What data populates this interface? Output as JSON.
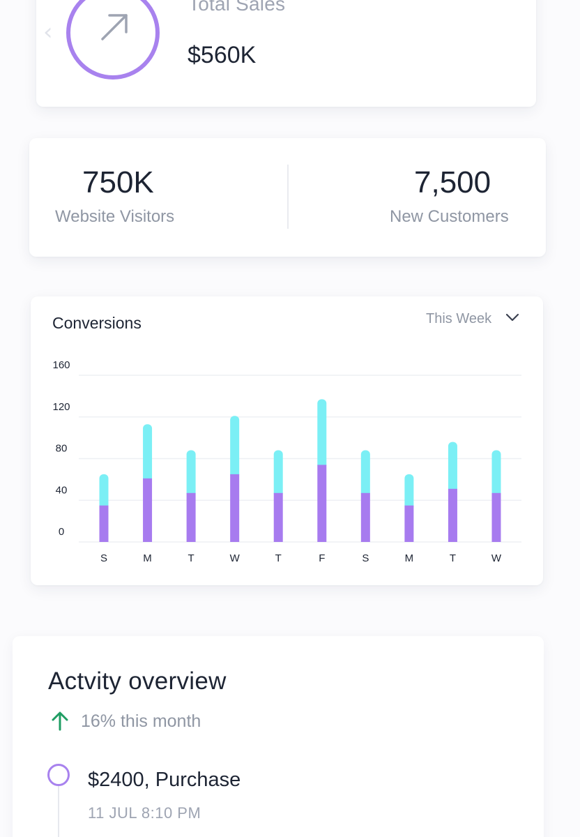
{
  "colors": {
    "accent_purple": "#a882ee",
    "bar_bottom": "#a77bef",
    "bar_top": "#7beff5",
    "trend_up": "#1f9d63",
    "text_muted": "#8f96a3"
  },
  "sales": {
    "label": "Total Sales",
    "value": "$560K",
    "icon": "arrow-up-right-icon",
    "nav_icon": "chevron-left-icon"
  },
  "stats": {
    "visitors": {
      "value": "750K",
      "label": "Website Visitors"
    },
    "customers": {
      "value": "7,500",
      "label": "New Customers"
    }
  },
  "conversions": {
    "title": "Conversions",
    "period": "This Week",
    "period_icon": "chevron-down-icon"
  },
  "chart_data": {
    "type": "bar",
    "stacked": true,
    "title": "Conversions",
    "categories": [
      "S",
      "M",
      "T",
      "W",
      "T",
      "F",
      "S",
      "M",
      "T",
      "W"
    ],
    "series": [
      {
        "values": [
          35,
          61,
          47,
          65,
          47,
          74,
          47,
          35,
          51,
          47
        ]
      },
      {
        "values": [
          30,
          52,
          41,
          56,
          41,
          63,
          41,
          30,
          45,
          41
        ]
      }
    ],
    "yticks": [
      "0",
      "40",
      "80",
      "120",
      "160"
    ],
    "ylim": [
      0,
      160
    ],
    "grid": true,
    "legend": "none"
  },
  "activity": {
    "title": "Actvity overview",
    "trend_icon": "arrow-up-icon",
    "trend_text": "16% this month",
    "items": [
      {
        "amount": "$2400, Purchase",
        "time": "11 JUL 8:10 PM"
      }
    ]
  }
}
